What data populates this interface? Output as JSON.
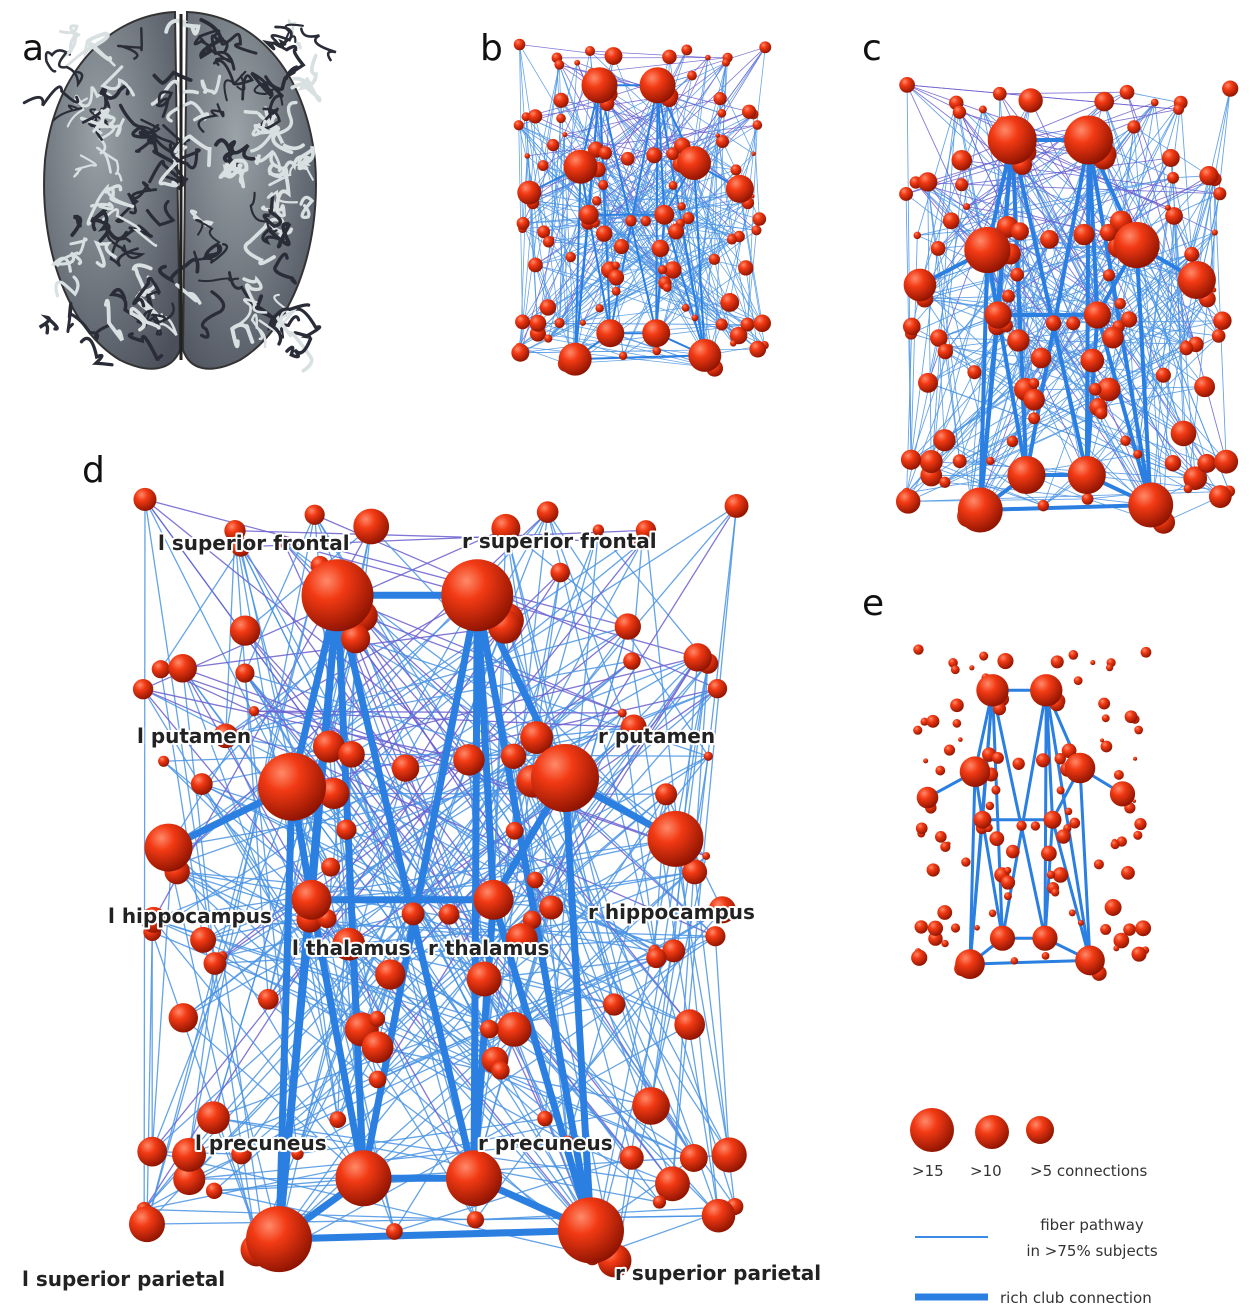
{
  "panels": [
    "a",
    "b",
    "c",
    "d",
    "e"
  ],
  "regions": [
    "l superior frontal",
    "r superior frontal",
    "l putamen",
    "r putamen",
    "l hippocampus",
    "r hippocampus",
    "l thalamus",
    "r thalamus",
    "l precuneus",
    "r precuneus",
    "l superior parietal",
    "r superior parietal"
  ],
  "legend": {
    "sizes": [
      ">15",
      ">10",
      ">5 connections"
    ],
    "fiber_pathway": [
      "fiber pathway",
      "in >75% subjects"
    ],
    "rich_club": "rich club connection"
  }
}
